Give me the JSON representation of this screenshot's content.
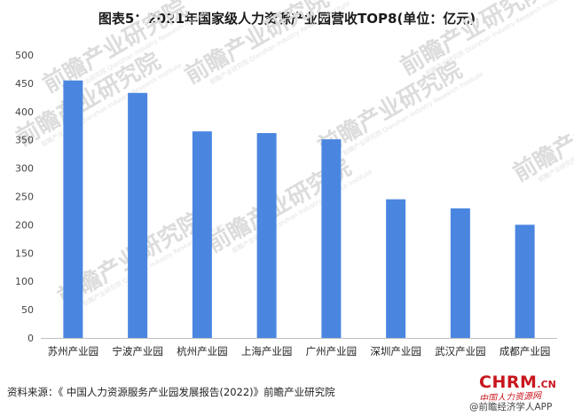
{
  "title": "图表5：2021年国家级人力资源产业园营收TOP8(单位：亿元)",
  "source": "资料来源：《 中国人力资源服务产业园发展报告(2022)》前瞻产业研究院",
  "watermark": {
    "main": "前瞻产业研究院",
    "sub": "前瞻产业研究院 Qianzhan Industry Research Institute"
  },
  "logo": {
    "brand": "CHRM",
    "domain": ".CN",
    "tagline": "中国人力资源网"
  },
  "app_label": "@前瞻经济学人APP",
  "colors": {
    "bar": "#4a86e0",
    "axis": "#bfbfbf"
  },
  "chart_data": {
    "type": "bar",
    "title": "图表5：2021年国家级人力资源产业园营收TOP8(单位：亿元)",
    "categories": [
      "苏州产业园",
      "宁波产业园",
      "杭州产业园",
      "上海产业园",
      "广州产业园",
      "深圳产业园",
      "武汉产业园",
      "成都产业园"
    ],
    "values": [
      455,
      433,
      365,
      362,
      351,
      245,
      229,
      200
    ],
    "ylim": [
      0,
      500
    ],
    "yticks": [
      "0",
      "50",
      "100",
      "150",
      "200",
      "250",
      "300",
      "350",
      "400",
      "450",
      "500"
    ],
    "grid": false,
    "xlabel": "",
    "ylabel": ""
  }
}
